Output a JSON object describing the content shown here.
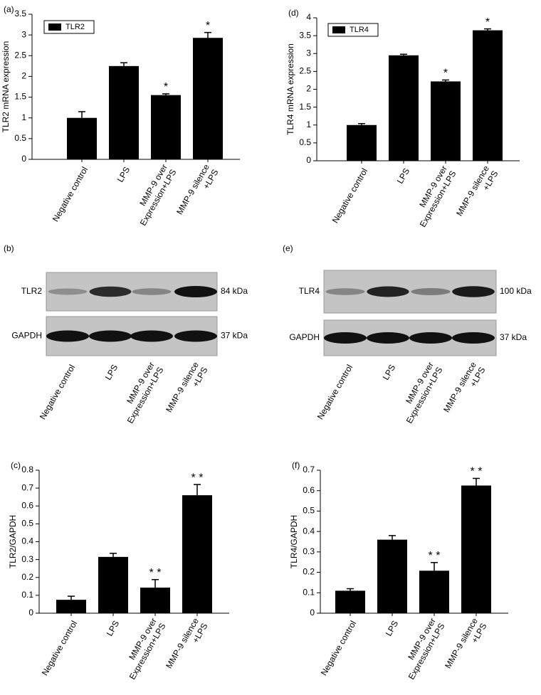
{
  "chart_data": [
    {
      "type": "bar",
      "panel_label": "(a)",
      "y_label": "TLR2 mRNA expression",
      "categories": [
        "Negative control",
        "LPS",
        "MMP-9 over\nExpression+LPS",
        "MMP-9 silence\n+LPS"
      ],
      "series": [
        {
          "name": "TLR2",
          "color": "#000000",
          "values": [
            1.0,
            2.25,
            1.55,
            2.93
          ],
          "errors": [
            0.15,
            0.08,
            0.03,
            0.13
          ]
        }
      ],
      "significance": [
        null,
        null,
        "*",
        "*"
      ],
      "ylim": [
        0,
        3.5
      ],
      "yticks": [
        0,
        0.5,
        1,
        1.5,
        2,
        2.5,
        3,
        3.5
      ],
      "legend": "upper left"
    },
    {
      "type": "bar",
      "panel_label": "(d)",
      "y_label": "TLR4 mRNA expression",
      "categories": [
        "Negative control",
        "LPS",
        "MMP-9 over\nExpression+LPS",
        "MMP-9 silence\n+LPS"
      ],
      "series": [
        {
          "name": "TLR4",
          "color": "#000000",
          "values": [
            1.0,
            2.95,
            2.22,
            3.65
          ],
          "errors": [
            0.04,
            0.03,
            0.04,
            0.04
          ]
        }
      ],
      "significance": [
        null,
        null,
        "*",
        "*"
      ],
      "ylim": [
        0,
        4
      ],
      "yticks": [
        0,
        0.5,
        1,
        1.5,
        2,
        2.5,
        3,
        3.5,
        4
      ],
      "legend": "upper left"
    },
    {
      "type": "bar",
      "panel_label": "(c)",
      "y_label": "TLR2/GAPDH",
      "categories": [
        "Negative control",
        "LPS",
        "MMP-9 over\nExpression+LPS",
        "MMP-9 silence\n+LPS"
      ],
      "color": "#000000",
      "values": [
        0.075,
        0.315,
        0.143,
        0.66
      ],
      "errors": [
        0.02,
        0.02,
        0.045,
        0.06
      ],
      "significance": [
        null,
        null,
        "* *",
        "* *"
      ],
      "ylim": [
        0,
        0.8
      ],
      "yticks": [
        0,
        0.1,
        0.2,
        0.3,
        0.4,
        0.5,
        0.6,
        0.7,
        0.8
      ]
    },
    {
      "type": "bar",
      "panel_label": "(f)",
      "y_label": "TLR4/GAPDH",
      "categories": [
        "Negative control",
        "LPS",
        "MMP-9 over\nExpression+LPS",
        "MMP-9 silence\n+LPS"
      ],
      "color": "#000000",
      "values": [
        0.11,
        0.36,
        0.208,
        0.625
      ],
      "errors": [
        0.01,
        0.02,
        0.04,
        0.035
      ],
      "significance": [
        null,
        null,
        "* *",
        "* *"
      ],
      "ylim": [
        0,
        0.7
      ],
      "yticks": [
        0,
        0.1,
        0.2,
        0.3,
        0.4,
        0.5,
        0.6,
        0.7
      ]
    }
  ],
  "blots": [
    {
      "panel_label": "(b)",
      "categories": [
        "Negative control",
        "LPS",
        "MMP-9 over\nExpression+LPS",
        "MMP-9 silence\n+LPS"
      ],
      "rows": [
        {
          "label": "TLR2",
          "size": "84 kDa"
        },
        {
          "label": "GAPDH",
          "size": "37 kDa"
        }
      ]
    },
    {
      "panel_label": "(e)",
      "categories": [
        "Negative control",
        "LPS",
        "MMP-9 over\nExpression+LPS",
        "MMP-9 silence\n+LPS"
      ],
      "rows": [
        {
          "label": "TLR4",
          "size": "100 kDa"
        },
        {
          "label": "GAPDH",
          "size": "37 kDa"
        }
      ]
    }
  ]
}
